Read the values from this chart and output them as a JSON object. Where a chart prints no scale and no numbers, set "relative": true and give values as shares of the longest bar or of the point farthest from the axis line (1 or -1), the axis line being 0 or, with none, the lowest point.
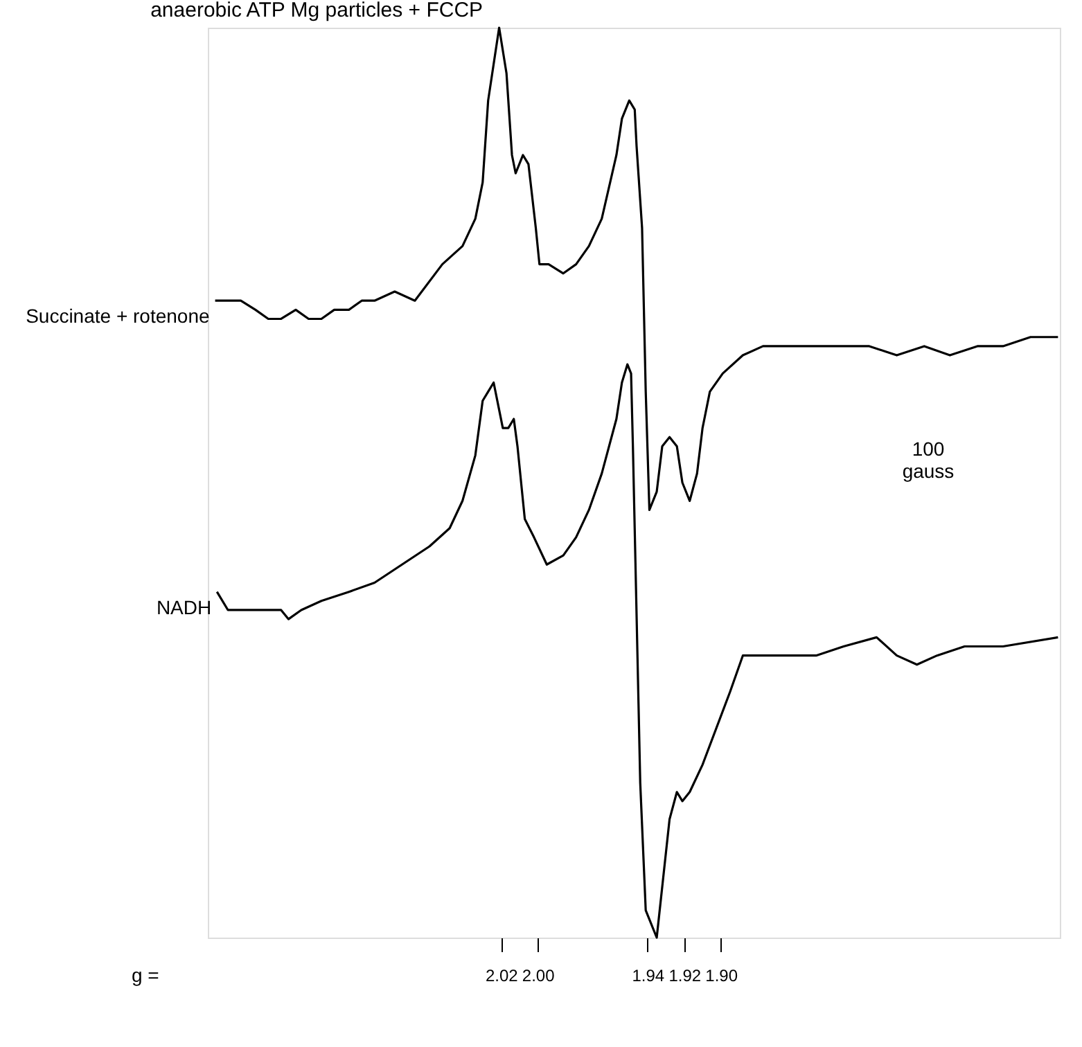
{
  "chart_data": {
    "type": "line",
    "title": "anaerobic  ATP Mg particles + FCCP",
    "xlabel": "g =",
    "relative": true,
    "xlim": [
      2.18,
      1.715
    ],
    "xticks": [
      2.02,
      {
        "value": 2.0,
        "label": "2.00"
      },
      1.94,
      1.92,
      {
        "value": 1.9,
        "label": "1.90"
      }
    ],
    "tick_labels": "x",
    "grid": false,
    "marker": "none",
    "line_style": "solid",
    "annotations": [
      "100 gauss"
    ],
    "series": [
      {
        "name": "Succinate + rotenone",
        "color": "#000000",
        "x": [
          2.176,
          2.169,
          2.162,
          2.154,
          2.147,
          2.14,
          2.132,
          2.125,
          2.118,
          2.111,
          2.103,
          2.096,
          2.089,
          2.078,
          2.067,
          2.052,
          2.041,
          2.034,
          2.03,
          2.027,
          2.024,
          2.021,
          2.017,
          2.014,
          2.012,
          2.008,
          2.005,
          2.001,
          1.999,
          1.994,
          1.986,
          1.979,
          1.972,
          1.965,
          1.957,
          1.954,
          1.95,
          1.947,
          1.946,
          1.943,
          1.941,
          1.939,
          1.935,
          1.932,
          1.928,
          1.924,
          1.921,
          1.917,
          1.913,
          1.91,
          1.906,
          1.899,
          1.888,
          1.877,
          1.862,
          1.848,
          1.833,
          1.819,
          1.804,
          1.789,
          1.775,
          1.76,
          1.746,
          1.731,
          1.716
        ],
        "values": [
          0.7,
          0.7,
          0.7,
          0.69,
          0.68,
          0.68,
          0.69,
          0.68,
          0.68,
          0.69,
          0.69,
          0.7,
          0.7,
          0.71,
          0.7,
          0.74,
          0.76,
          0.79,
          0.83,
          0.92,
          0.96,
          1.0,
          0.95,
          0.86,
          0.84,
          0.86,
          0.85,
          0.78,
          0.74,
          0.74,
          0.73,
          0.74,
          0.76,
          0.79,
          0.86,
          0.9,
          0.92,
          0.91,
          0.87,
          0.78,
          0.6,
          0.47,
          0.49,
          0.54,
          0.55,
          0.54,
          0.5,
          0.48,
          0.51,
          0.56,
          0.6,
          0.62,
          0.64,
          0.65,
          0.65,
          0.65,
          0.65,
          0.65,
          0.64,
          0.65,
          0.64,
          0.65,
          0.65,
          0.66,
          0.66
        ]
      },
      {
        "name": "NADH",
        "color": "#000000",
        "x": [
          2.175,
          2.169,
          2.162,
          2.154,
          2.147,
          2.14,
          2.136,
          2.129,
          2.118,
          2.103,
          2.089,
          2.074,
          2.059,
          2.048,
          2.041,
          2.034,
          2.03,
          2.027,
          2.024,
          2.021,
          2.019,
          2.016,
          2.013,
          2.011,
          2.007,
          2.002,
          1.995,
          1.986,
          1.979,
          1.972,
          1.965,
          1.957,
          1.954,
          1.951,
          1.949,
          1.948,
          1.944,
          1.941,
          1.935,
          1.928,
          1.924,
          1.921,
          1.917,
          1.91,
          1.895,
          1.888,
          1.877,
          1.87,
          1.862,
          1.848,
          1.833,
          1.815,
          1.804,
          1.793,
          1.782,
          1.767,
          1.746,
          1.716
        ],
        "values": [
          0.38,
          0.36,
          0.36,
          0.36,
          0.36,
          0.36,
          0.35,
          0.36,
          0.37,
          0.38,
          0.39,
          0.41,
          0.43,
          0.45,
          0.48,
          0.53,
          0.59,
          0.6,
          0.61,
          0.58,
          0.56,
          0.56,
          0.57,
          0.54,
          0.46,
          0.44,
          0.41,
          0.42,
          0.44,
          0.47,
          0.51,
          0.57,
          0.61,
          0.63,
          0.62,
          0.54,
          0.17,
          0.03,
          0.0,
          0.13,
          0.16,
          0.15,
          0.16,
          0.19,
          0.27,
          0.31,
          0.31,
          0.31,
          0.31,
          0.31,
          0.32,
          0.33,
          0.31,
          0.3,
          0.31,
          0.32,
          0.32,
          0.33
        ]
      }
    ]
  }
}
